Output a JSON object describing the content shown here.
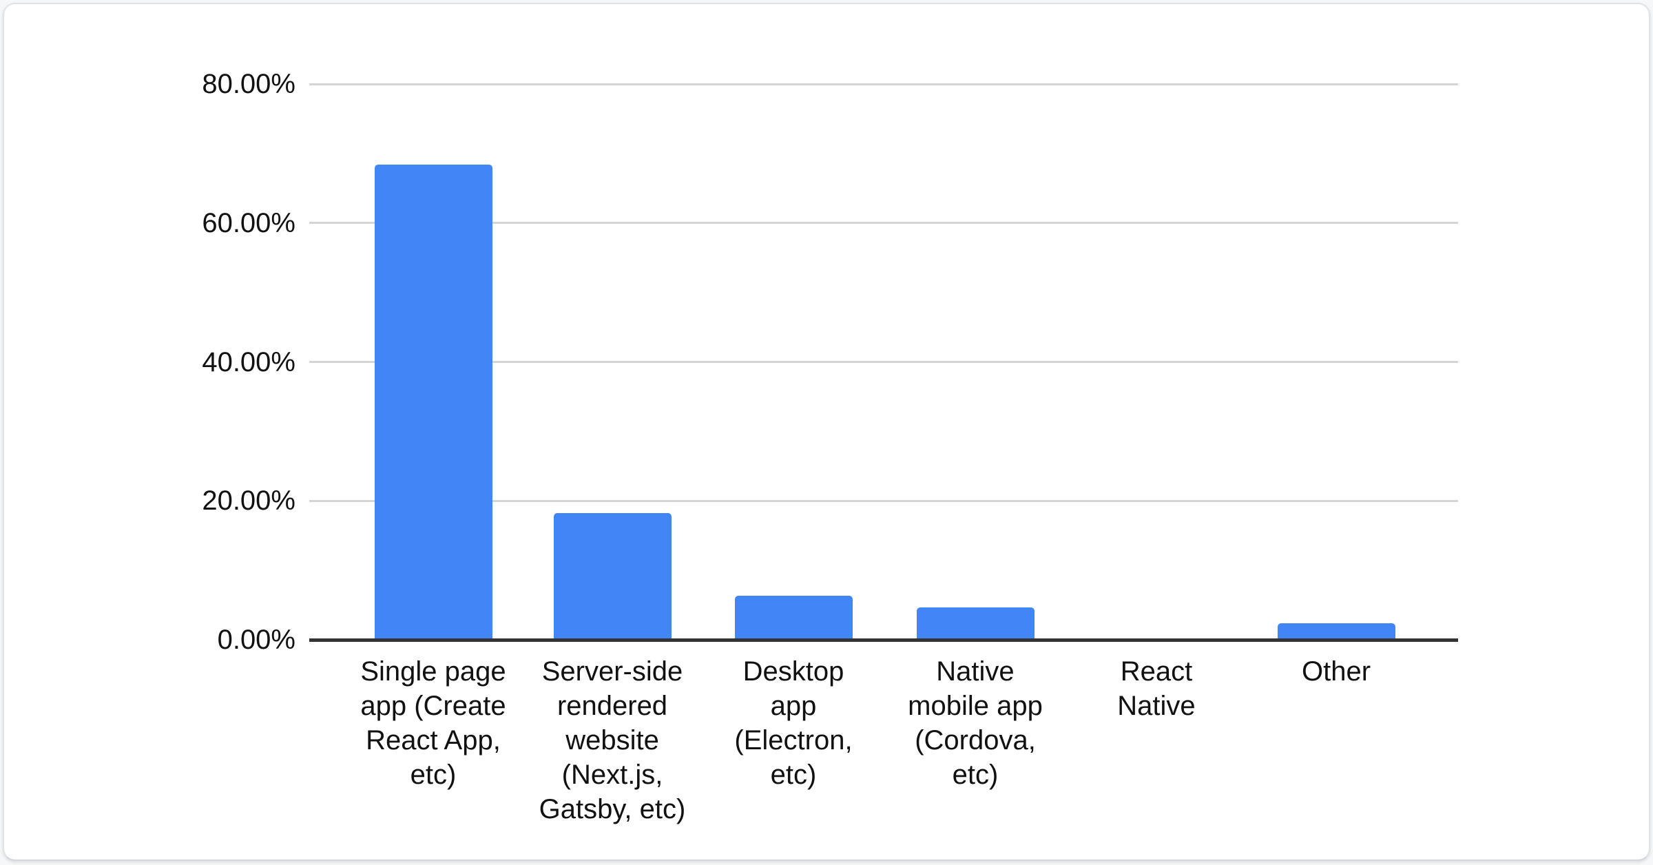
{
  "page": {
    "background": "#ffffff"
  },
  "card": {
    "background": "#ffffff",
    "border_color": "#e0e2e6"
  },
  "chart_data": {
    "type": "bar",
    "title": "",
    "xlabel": "",
    "ylabel": "",
    "legend": "none",
    "grid": "horizontal",
    "ylim": [
      0,
      80
    ],
    "categories": [
      "Single page app (Create React App, etc)",
      "Server-side rendered website (Next.js, Gatsby, etc)",
      "Desktop app (Electron, etc)",
      "Native mobile app (Cordova, etc)",
      "React Native",
      "Other"
    ],
    "category_lines": [
      [
        "Single page",
        "app (Create",
        "React App,",
        "etc)"
      ],
      [
        "Server-side",
        "rendered",
        "website",
        "(Next.js,",
        "Gatsby, etc)"
      ],
      [
        "Desktop",
        "app",
        "(Electron,",
        "etc)"
      ],
      [
        "Native",
        "mobile app",
        "(Cordova,",
        "etc)"
      ],
      [
        "React",
        "Native"
      ],
      [
        "Other"
      ]
    ],
    "values": [
      68.4,
      18.2,
      6.3,
      4.7,
      0,
      2.4
    ],
    "values_unit": "%",
    "yticks": [
      {
        "value": 80,
        "label": "80.00%"
      },
      {
        "value": 60,
        "label": "60.00%"
      },
      {
        "value": 40,
        "label": "40.00%"
      },
      {
        "value": 20,
        "label": "20.00%"
      },
      {
        "value": 0,
        "label": "0.00%"
      }
    ],
    "colors": {
      "bar": "#4285f4",
      "axis_line": "#333333",
      "gridline": "#d5d5d5",
      "label_text": "#111111"
    }
  }
}
